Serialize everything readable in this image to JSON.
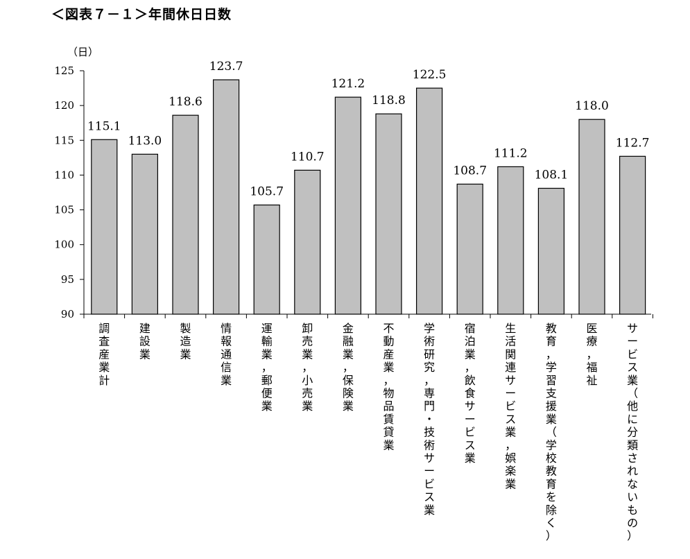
{
  "title": "＜図表７－１＞年間休日日数",
  "chart_data": {
    "type": "bar",
    "title": "＜図表７－１＞年間休日日数",
    "unit": "（日）",
    "ylim": [
      90,
      125
    ],
    "yticks": [
      90,
      95,
      100,
      105,
      110,
      115,
      120,
      125
    ],
    "grid": false,
    "bar_color": "#c0c0c0",
    "categories": [
      "調査産業計",
      "建設業",
      "製造業",
      "情報通信業",
      "運輸業，郵便業",
      "卸売業，小売業",
      "金融業，保険業",
      "不動産業，物品賃貸業",
      "学術研究，専門・技術サービス業",
      "宿泊業，飲食サービス業",
      "生活関連サービス業，娯楽業",
      "教育，学習支援業（学校教育を除く）",
      "医療，福祉",
      "サービス業（他に分類されないもの）"
    ],
    "values": [
      115.1,
      113.0,
      118.6,
      123.7,
      105.7,
      110.7,
      121.2,
      118.8,
      122.5,
      108.7,
      111.2,
      108.1,
      118.0,
      112.7
    ],
    "data_labels": [
      "115.1",
      "113.0",
      "118.6",
      "123.7",
      "105.7",
      "110.7",
      "121.2",
      "118.8",
      "122.5",
      "108.7",
      "111.2",
      "108.1",
      "118.0",
      "112.7"
    ]
  }
}
